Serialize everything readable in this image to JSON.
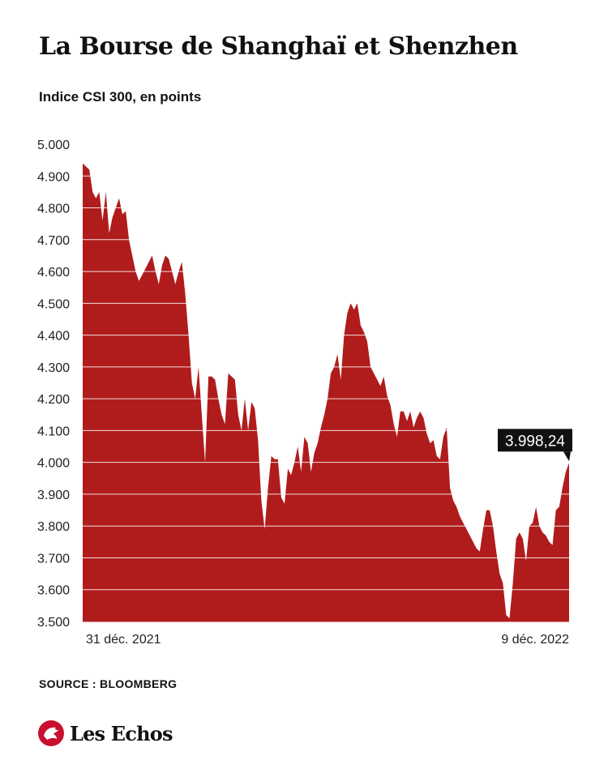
{
  "chart_data": {
    "type": "area",
    "title": "La Bourse de Shanghaï et Shenzhen",
    "subtitle": "Indice CSI 300, en points",
    "ylim": [
      3500,
      5000
    ],
    "y_ticks": [
      5000,
      4900,
      4800,
      4700,
      4600,
      4500,
      4400,
      4300,
      4200,
      4100,
      4000,
      3900,
      3800,
      3700,
      3600,
      3500
    ],
    "y_tick_labels": [
      "5.000",
      "4.900",
      "4.800",
      "4.700",
      "4.600",
      "4.500",
      "4.400",
      "4.300",
      "4.200",
      "4.100",
      "4.000",
      "3.900",
      "3.800",
      "3.700",
      "3.600",
      "3.500"
    ],
    "x_start_label": "31 déc. 2021",
    "x_end_label": "9 déc. 2022",
    "grid": true,
    "series_color": "#b01c1c",
    "last_value_label": "3.998,24",
    "values": [
      4940,
      4930,
      4920,
      4850,
      4830,
      4850,
      4760,
      4850,
      4720,
      4770,
      4800,
      4830,
      4780,
      4790,
      4700,
      4650,
      4600,
      4570,
      4590,
      4610,
      4630,
      4650,
      4600,
      4560,
      4620,
      4650,
      4640,
      4600,
      4560,
      4600,
      4630,
      4530,
      4400,
      4250,
      4200,
      4300,
      4150,
      4000,
      4270,
      4270,
      4260,
      4200,
      4150,
      4120,
      4280,
      4270,
      4260,
      4150,
      4100,
      4200,
      4100,
      4190,
      4170,
      4070,
      3880,
      3790,
      3920,
      4020,
      4010,
      4010,
      3890,
      3870,
      3980,
      3960,
      4000,
      4050,
      3970,
      4080,
      4060,
      3970,
      4030,
      4060,
      4110,
      4150,
      4200,
      4280,
      4300,
      4340,
      4260,
      4400,
      4470,
      4500,
      4480,
      4500,
      4430,
      4410,
      4380,
      4300,
      4280,
      4260,
      4240,
      4270,
      4210,
      4180,
      4120,
      4080,
      4160,
      4160,
      4130,
      4160,
      4110,
      4140,
      4160,
      4140,
      4090,
      4060,
      4070,
      4020,
      4010,
      4080,
      4110,
      3920,
      3880,
      3860,
      3830,
      3810,
      3790,
      3770,
      3750,
      3730,
      3720,
      3790,
      3850,
      3850,
      3800,
      3720,
      3650,
      3620,
      3520,
      3510,
      3620,
      3760,
      3780,
      3760,
      3690,
      3800,
      3810,
      3860,
      3800,
      3780,
      3770,
      3750,
      3740,
      3850,
      3860,
      3920,
      3970,
      3998.24
    ]
  }
}
